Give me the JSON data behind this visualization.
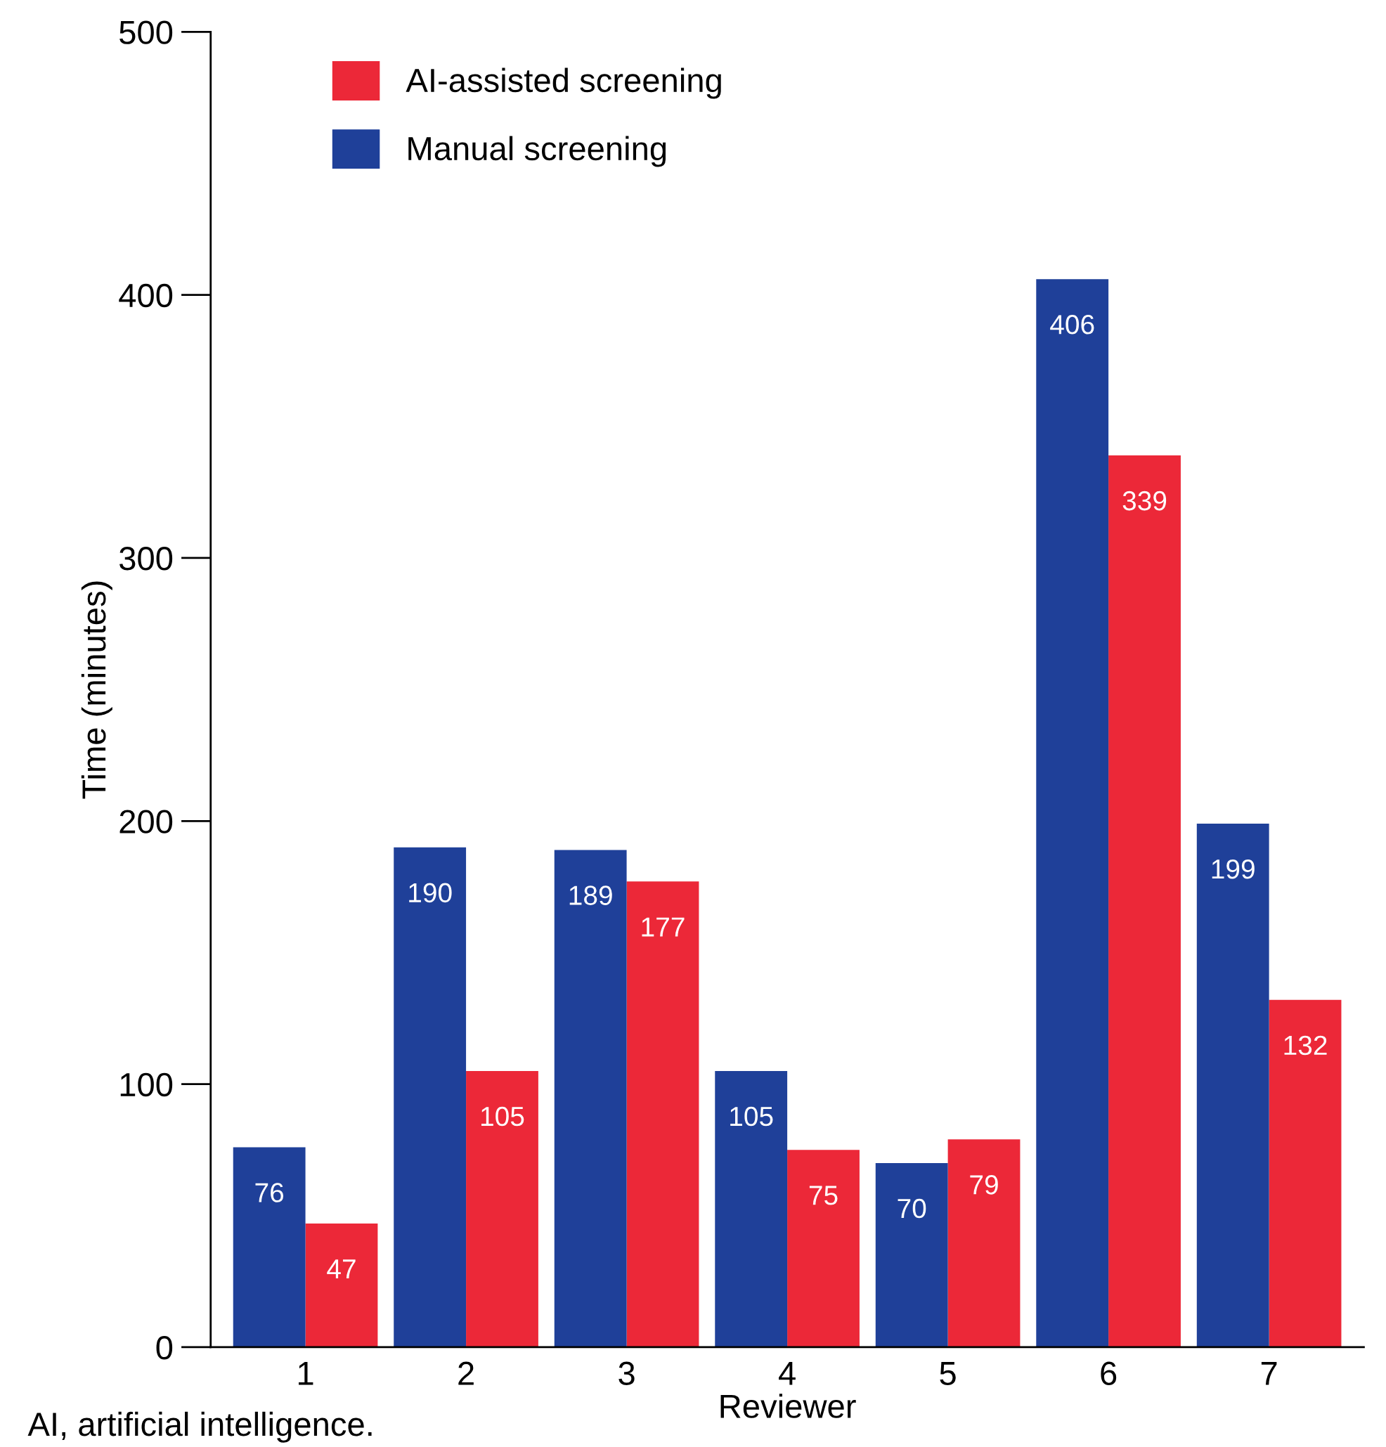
{
  "chart_data": {
    "type": "bar",
    "xlabel": "Reviewer",
    "ylabel": "Time (minutes)",
    "categories": [
      "1",
      "2",
      "3",
      "4",
      "5",
      "6",
      "7"
    ],
    "series": [
      {
        "name": "AI-assisted screening",
        "color": "#ec2838",
        "values": [
          47,
          105,
          177,
          75,
          79,
          339,
          132
        ]
      },
      {
        "name": "Manual screening",
        "color": "#1f4099",
        "values": [
          76,
          190,
          189,
          105,
          70,
          406,
          199
        ]
      }
    ],
    "ylim": [
      0,
      500
    ],
    "yticks": [
      0,
      100,
      200,
      300,
      400,
      500
    ],
    "grid": false,
    "legend": "top left",
    "data_labels": true,
    "annotations": [
      "AI, artificial intelligence."
    ]
  }
}
